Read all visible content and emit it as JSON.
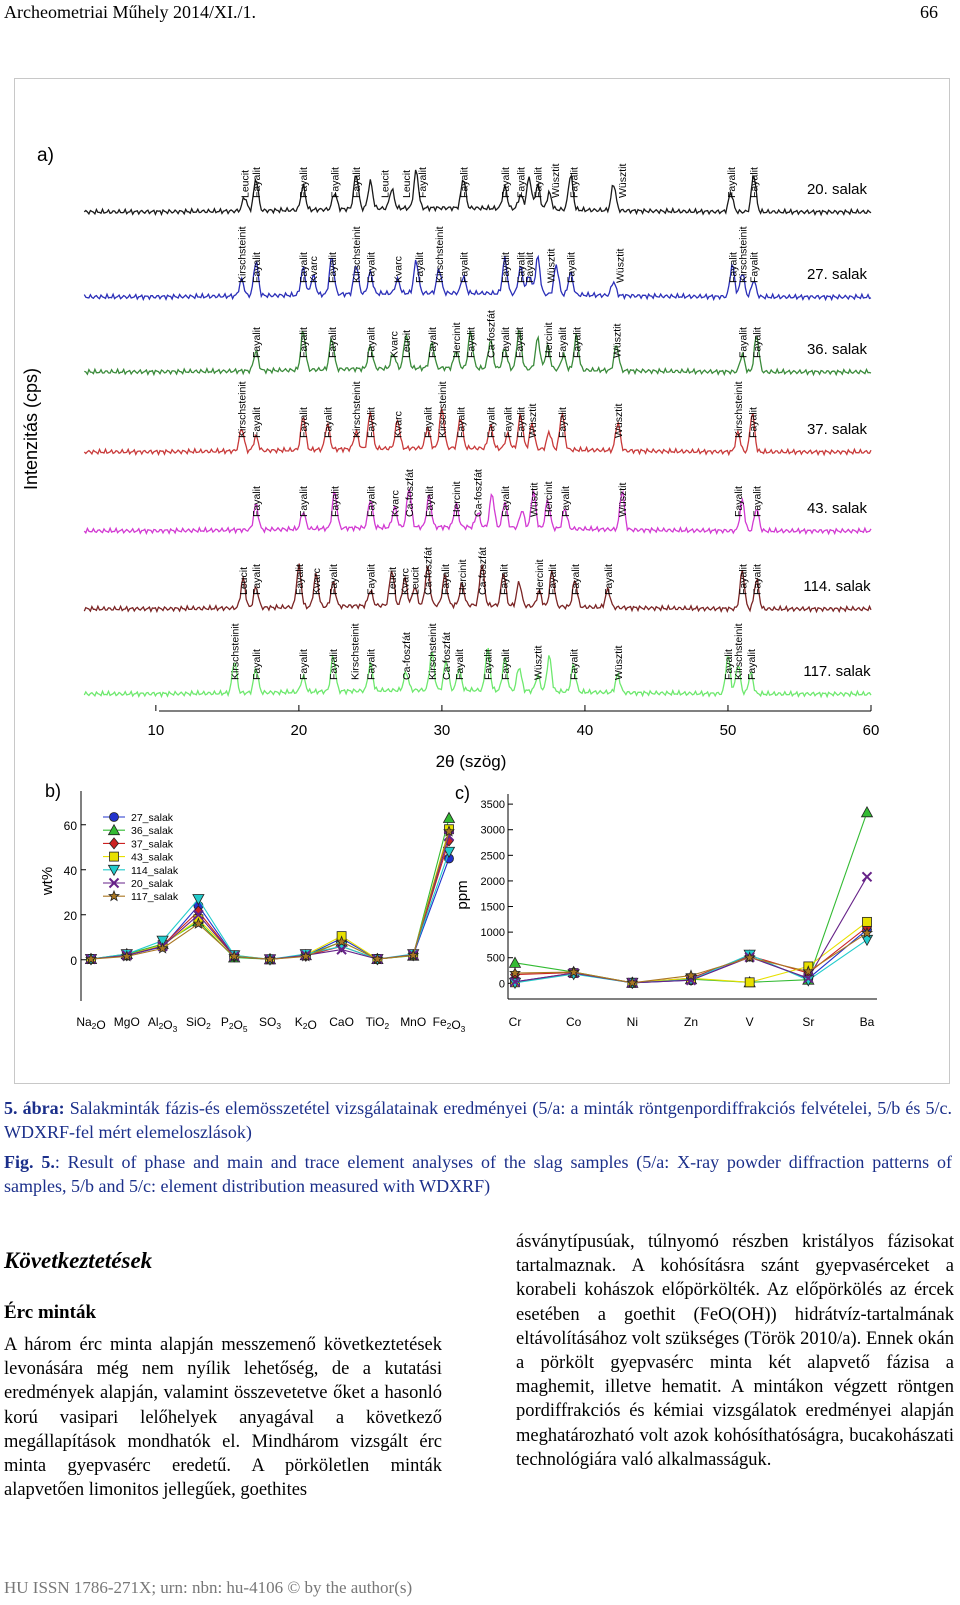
{
  "header": {
    "journal": "Archeometriai Műhely 2014/XI./1.",
    "page_number": "66"
  },
  "figure": {
    "panel_a": {
      "panel_label": "a)",
      "ylabel": "Intenzitás (cps)",
      "xlabel": "2θ (szög)",
      "xlim": [
        5,
        60
      ],
      "xticks": [
        "10",
        "20",
        "30",
        "40",
        "50",
        "60"
      ],
      "samples": [
        {
          "name": "20. salak",
          "color": "#1a1a1a",
          "peaks": [
            16.2,
            17.0,
            20.3,
            22.5,
            24.0,
            25.0,
            26.5,
            28.2,
            31.5,
            34.4,
            35.5,
            36.1,
            36.7,
            37.5,
            39.0,
            42.0,
            50.2,
            51.8
          ],
          "labels": [
            [
              "Leucit",
              16.2
            ],
            [
              "Fayalit",
              17.0
            ],
            [
              "Fayalit",
              20.3
            ],
            [
              "Fayalit",
              22.5
            ],
            [
              "Fayalit",
              24.0
            ],
            [
              "Leucit",
              26.0
            ],
            [
              "Leucit",
              27.5
            ],
            [
              "Fayalit",
              28.6
            ],
            [
              "Fayalit",
              31.5
            ],
            [
              "Fayalit",
              34.4
            ],
            [
              "Fayalit",
              35.5
            ],
            [
              "Fayalit",
              36.7
            ],
            [
              "Wüsztit",
              37.9
            ],
            [
              "Fayalit",
              39.2
            ],
            [
              "Wüsztit",
              42.6
            ],
            [
              "Fayalit",
              50.2
            ],
            [
              "Fayalit",
              51.8
            ]
          ]
        },
        {
          "name": "27. salak",
          "color": "#2b2fb8",
          "peaks": [
            16.0,
            17.0,
            20.3,
            21.0,
            22.3,
            24.0,
            25.0,
            26.9,
            28.2,
            29.8,
            31.5,
            34.4,
            35.5,
            36.1,
            36.7,
            38.0,
            39.0,
            42.0,
            50.3,
            51.0,
            51.8
          ],
          "labels": [
            [
              "Kirschsteinit",
              16.0
            ],
            [
              "Fayalit",
              17.0
            ],
            [
              "Fayalit",
              20.3
            ],
            [
              "Kvarc",
              21.0
            ],
            [
              "Fayalit",
              22.3
            ],
            [
              "Kirschsteinit",
              24.0
            ],
            [
              "Fayalit",
              25.0
            ],
            [
              "Kvarc",
              26.9
            ],
            [
              "Fayalit",
              28.4
            ],
            [
              "Kirschsteinit",
              29.8
            ],
            [
              "Fayalit",
              31.5
            ],
            [
              "Fayalit",
              34.4
            ],
            [
              "Fayalit",
              35.5
            ],
            [
              "Fayalit",
              36.1
            ],
            [
              "Wüsztit",
              37.6
            ],
            [
              "Fayalit",
              39.0
            ],
            [
              "Wüsztit",
              42.4
            ],
            [
              "Fayalit",
              50.3
            ],
            [
              "Kirschsteinit",
              51.0
            ],
            [
              "Fayalit",
              51.8
            ]
          ]
        },
        {
          "name": "36. salak",
          "color": "#3a8a3a",
          "peaks": [
            17.0,
            20.3,
            22.3,
            25.0,
            26.6,
            27.5,
            29.3,
            31.0,
            32.0,
            33.4,
            34.4,
            35.4,
            36.7,
            37.4,
            38.5,
            39.4,
            42.2,
            51.0,
            52.0
          ],
          "labels": [
            [
              "Fayalit",
              17.0
            ],
            [
              "Fayalit",
              20.3
            ],
            [
              "Fayalit",
              22.3
            ],
            [
              "Fayalit",
              25.0
            ],
            [
              "Kvarc",
              26.6
            ],
            [
              "Leucit",
              27.5
            ],
            [
              "Fayalit",
              29.3
            ],
            [
              "Hercinit",
              31.0
            ],
            [
              "Fayalit",
              32.0
            ],
            [
              "Ca-foszfát",
              33.4
            ],
            [
              "Fayalit",
              34.4
            ],
            [
              "Fayalit",
              35.4
            ],
            [
              "Hercinit",
              37.4
            ],
            [
              "Fayalit",
              38.4
            ],
            [
              "Fayalit",
              39.4
            ],
            [
              "Wüsztit",
              42.2
            ],
            [
              "Fayalit",
              51.0
            ],
            [
              "Fayalit",
              52.0
            ]
          ]
        },
        {
          "name": "37. salak",
          "color": "#c83a3a",
          "peaks": [
            16.0,
            17.0,
            20.3,
            22.0,
            24.0,
            25.0,
            26.9,
            29.0,
            30.0,
            31.3,
            33.4,
            34.6,
            35.5,
            36.3,
            37.5,
            38.4,
            42.3,
            50.7,
            51.7
          ],
          "labels": [
            [
              "Kirschsteinit",
              16.0
            ],
            [
              "Fayalit",
              17.0
            ],
            [
              "Fayalit",
              20.3
            ],
            [
              "Fayalit",
              22.0
            ],
            [
              "Kirschsteinit",
              24.0
            ],
            [
              "Fayalit",
              25.0
            ],
            [
              "Kvarc",
              26.9
            ],
            [
              "Fayalit",
              29.0
            ],
            [
              "Kirschsteinit",
              30.0
            ],
            [
              "Fayalit",
              31.3
            ],
            [
              "Fayalit",
              33.4
            ],
            [
              "Fayalit",
              34.6
            ],
            [
              "Fayalit",
              35.5
            ],
            [
              "Wüsztit",
              36.3
            ],
            [
              "Fayalit",
              38.4
            ],
            [
              "Wüsztit",
              42.3
            ],
            [
              "Kirschsteinit",
              50.7
            ],
            [
              "Fayalit",
              51.7
            ]
          ]
        },
        {
          "name": "43. salak",
          "color": "#d23ad2",
          "peaks": [
            17.0,
            20.3,
            22.5,
            25.0,
            26.7,
            27.7,
            29.1,
            31.0,
            32.5,
            33.5,
            34.4,
            35.6,
            36.4,
            37.4,
            38.6,
            42.6,
            51.0,
            52.0
          ],
          "labels": [
            [
              "Fayalit",
              17.0
            ],
            [
              "Fayalit",
              20.3
            ],
            [
              "Fayalit",
              22.5
            ],
            [
              "Fayalit",
              25.0
            ],
            [
              "Kvarc",
              26.7
            ],
            [
              "Ca-foszfát",
              27.7
            ],
            [
              "Fayalit",
              29.1
            ],
            [
              "Hercinit",
              31.0
            ],
            [
              "Ca-foszfát",
              32.5
            ],
            [
              "Fayalit",
              34.4
            ],
            [
              "Wüsztit",
              36.4
            ],
            [
              "Hercinit",
              37.4
            ],
            [
              "Fayalit",
              38.6
            ],
            [
              "Wüsztit",
              42.6
            ],
            [
              "Fayalit",
              50.7
            ],
            [
              "Fayalit",
              52.0
            ]
          ]
        },
        {
          "name": "114. salak",
          "color": "#7a2424",
          "peaks": [
            16.1,
            17.0,
            20.0,
            21.2,
            22.4,
            25.0,
            26.5,
            27.4,
            28.1,
            29.0,
            30.2,
            31.4,
            32.8,
            34.3,
            35.4,
            36.8,
            37.7,
            39.3,
            41.6,
            51.0,
            52.0
          ],
          "labels": [
            [
              "Leucit",
              16.1
            ],
            [
              "Fayalit",
              17.0
            ],
            [
              "Fayalit",
              20.0
            ],
            [
              "Kvarc",
              21.2
            ],
            [
              "Fayalit",
              22.4
            ],
            [
              "Fayalit",
              25.0
            ],
            [
              "Leucit",
              26.5
            ],
            [
              "Kvarc",
              27.4
            ],
            [
              "Leucit",
              28.1
            ],
            [
              "Ca-foszfát",
              29.0
            ],
            [
              "Fayalit",
              30.2
            ],
            [
              "Hercinit",
              31.4
            ],
            [
              "Ca-foszfát",
              32.8
            ],
            [
              "Fayalit",
              34.3
            ],
            [
              "Hercinit",
              36.8
            ],
            [
              "Fayalit",
              37.7
            ],
            [
              "Fayalit",
              39.3
            ],
            [
              "Fayalit",
              41.6
            ],
            [
              "Fayalit",
              51.0
            ],
            [
              "Fayalit",
              52.0
            ]
          ]
        },
        {
          "name": "117. salak",
          "color": "#6ee86e",
          "peaks": [
            15.5,
            17.0,
            20.3,
            22.4,
            25.0,
            27.5,
            29.3,
            30.3,
            31.2,
            33.2,
            34.4,
            35.4,
            36.7,
            37.5,
            39.2,
            42.3,
            50.0,
            50.7,
            51.6
          ],
          "labels": [
            [
              "Kirschsteinit",
              15.5
            ],
            [
              "Fayalit",
              17.0
            ],
            [
              "Fayalit",
              20.3
            ],
            [
              "Fayalit",
              22.4
            ],
            [
              "Kirschsteinit",
              23.9
            ],
            [
              "Fayalit",
              25.0
            ],
            [
              "Ca-foszfát",
              27.5
            ],
            [
              "Kirschsteinit",
              29.3
            ],
            [
              "Ca-foszfát",
              30.3
            ],
            [
              "Fayalit",
              31.2
            ],
            [
              "Fayalit",
              33.2
            ],
            [
              "Fayalit",
              34.4
            ],
            [
              "Wüsztit",
              36.7
            ],
            [
              "Fayalit",
              39.2
            ],
            [
              "Wüsztit",
              42.3
            ],
            [
              "Fayalit",
              50.0
            ],
            [
              "Kirschsteinit",
              50.7
            ],
            [
              "Fayalit",
              51.6
            ]
          ]
        }
      ]
    },
    "panel_b": {
      "panel_label": "b)",
      "ylabel": "wt%",
      "yticks": [
        "0",
        "20",
        "40",
        "60"
      ],
      "ylim": [
        -5,
        75
      ],
      "categories": [
        "Na2O",
        "MgO",
        "Al2O3",
        "SiO2",
        "P2O5",
        "SO3",
        "K2O",
        "CaO",
        "TiO2",
        "MnO",
        "Fe2O3"
      ],
      "series": [
        {
          "name": "27_salak",
          "color": "#2233cc",
          "marker": "circle",
          "values": [
            0.3,
            2.0,
            5.8,
            24.0,
            1.5,
            0.2,
            1.8,
            9.5,
            0.3,
            2.0,
            45.0
          ]
        },
        {
          "name": "36_salak",
          "color": "#33bb33",
          "marker": "triangle",
          "values": [
            0.3,
            2.5,
            7.0,
            17.0,
            1.0,
            0.2,
            2.0,
            8.0,
            0.3,
            1.8,
            63.0
          ]
        },
        {
          "name": "37_salak",
          "color": "#cc2222",
          "marker": "diamond",
          "values": [
            0.3,
            2.0,
            6.5,
            21.5,
            1.5,
            0.2,
            1.8,
            6.0,
            0.3,
            2.0,
            53.0
          ]
        },
        {
          "name": "43_salak",
          "color": "#e8e000",
          "marker": "square",
          "values": [
            0.3,
            2.0,
            6.5,
            18.0,
            2.0,
            0.2,
            2.2,
            10.5,
            0.3,
            2.0,
            58.0
          ]
        },
        {
          "name": "114_salak",
          "color": "#22cccc",
          "marker": "triangle-down",
          "values": [
            0.3,
            2.5,
            8.5,
            27.0,
            2.0,
            0.2,
            2.5,
            6.0,
            0.3,
            2.5,
            48.0
          ]
        },
        {
          "name": "20_salak",
          "color": "#662288",
          "marker": "x",
          "values": [
            0.3,
            2.0,
            6.0,
            20.0,
            1.5,
            0.2,
            2.0,
            4.5,
            0.3,
            2.2,
            55.0
          ]
        },
        {
          "name": "117_salak",
          "color": "#aa7722",
          "marker": "star",
          "values": [
            0.3,
            1.5,
            5.0,
            16.0,
            1.5,
            0.2,
            1.5,
            8.0,
            0.3,
            2.0,
            57.0
          ]
        }
      ]
    },
    "panel_c": {
      "panel_label": "c)",
      "ylabel": "ppm",
      "yticks": [
        "0",
        "500",
        "1000",
        "1500",
        "2000",
        "2500",
        "3000",
        "3500"
      ],
      "ylim": [
        -150,
        3600
      ],
      "categories": [
        "Cr",
        "Co",
        "Ni",
        "Zn",
        "V",
        "Sr",
        "Ba"
      ],
      "series": [
        {
          "name": "27_salak",
          "color": "#2233cc",
          "marker": "circle",
          "values": [
            30,
            200,
            10,
            60,
            520,
            90,
            1050
          ]
        },
        {
          "name": "36_salak",
          "color": "#33bb33",
          "marker": "triangle",
          "values": [
            400,
            220,
            10,
            80,
            20,
            70,
            3340
          ]
        },
        {
          "name": "37_salak",
          "color": "#cc2222",
          "marker": "diamond",
          "values": [
            170,
            210,
            10,
            100,
            540,
            200,
            1100
          ]
        },
        {
          "name": "43_salak",
          "color": "#e8e000",
          "marker": "square",
          "values": [
            20,
            200,
            10,
            100,
            20,
            330,
            1200
          ]
        },
        {
          "name": "114_salak",
          "color": "#22cccc",
          "marker": "triangle-down",
          "values": [
            10,
            180,
            10,
            70,
            560,
            60,
            850
          ]
        },
        {
          "name": "20_salak",
          "color": "#662288",
          "marker": "x",
          "values": [
            30,
            200,
            10,
            60,
            510,
            100,
            2080
          ]
        },
        {
          "name": "117_salak",
          "color": "#aa7722",
          "marker": "star",
          "values": [
            200,
            220,
            10,
            150,
            500,
            230,
            980
          ]
        }
      ]
    }
  },
  "caption_hu": {
    "label": "5. ábra:",
    "text": " Salakminták fázis-és elemösszetétel vizsgálatainak eredményei (5/a: a minták röntgenpordiffrakciós felvételei, 5/b és 5/c. WDXRF-fel mért elemeloszlások)"
  },
  "caption_en": {
    "label": "Fig. 5.",
    "text": ": Result of phase and main and trace element analyses of the slag samples (5/a: X-ray powder diffraction patterns of samples, 5/b and 5/c: element distribution measured with WDXRF)"
  },
  "section_title": "Következtetések",
  "subsection_title": "Érc minták",
  "col_left": "A három érc minta alapján messzemenő következtetések levonására még nem nyílik lehetőség, de a kutatási eredmények alapján, valamint összevetetve őket a hasonló korú vasipari lelőhelyek anyagával a következő megállapítások mondhatók el. Mindhárom vizsgált érc minta gyepvasérc eredetű. A pörköletlen minták alapvetően limonitos jellegűek, goethites",
  "col_right": "ásványtípusúak, túlnyomó részben kristályos fázisokat tartalmaznak. A kohósításra szánt gyepvasérceket a korabeli kohászok előpörkölték. Az előpörkölés az ércek esetében a goethit (FeO(OH)) hidrátvíz-tartalmának eltávolításához volt szükséges (Török 2010/a). Ennek okán a pörkölt gyepvasérc minta két alapvető fázisa a maghemit, illetve hematit. A mintákon végzett röntgen pordiffrakciós és kémiai vizsgálatok eredményei alapján meghatározható volt azok kohósíthatóságra, bucakohászati technológiára való alkalmasságuk.",
  "footer": "HU ISSN 1786-271X; urn: nbn: hu-4106 © by the author(s)"
}
